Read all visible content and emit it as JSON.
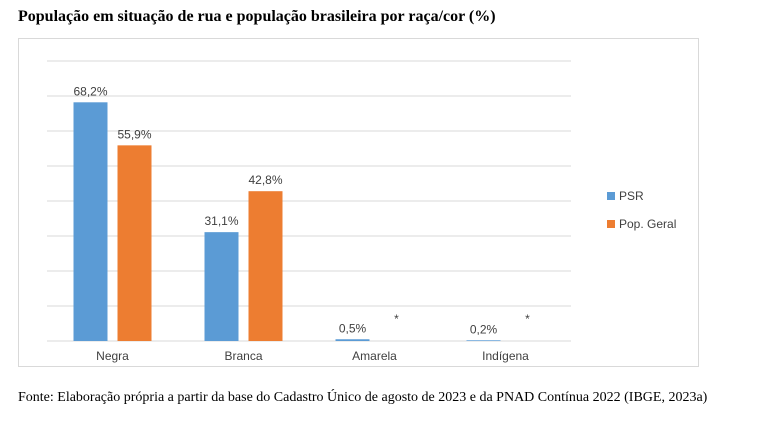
{
  "title": "População em situação de rua e população brasileira por raça/cor (%)",
  "source": "Fonte: Elaboração própria a partir da base do Cadastro Único de agosto de 2023 e da PNAD Contínua 2022 (IBGE, 2023a)",
  "colors": {
    "psr": "#5b9bd5",
    "pop_geral": "#ed7d31",
    "grid": "#d9d9d9",
    "text": "#404040"
  },
  "legend": [
    {
      "label": "PSR",
      "color": "#5b9bd5"
    },
    {
      "label": "Pop. Geral",
      "color": "#ed7d31"
    }
  ],
  "chart_data": {
    "type": "bar",
    "title": "População em situação de rua e população brasileira por raça/cor (%)",
    "categories": [
      "Negra",
      "Branca",
      "Amarela",
      "Indígena"
    ],
    "series": [
      {
        "name": "PSR",
        "values": [
          68.2,
          31.1,
          0.5,
          0.2
        ],
        "labels": [
          "68,2%",
          "31,1%",
          "0,5%",
          "0,2%"
        ]
      },
      {
        "name": "Pop. Geral",
        "values": [
          55.9,
          42.8,
          null,
          null
        ],
        "labels": [
          "55,9%",
          "42,8%",
          "*",
          "*"
        ]
      }
    ],
    "ylim": [
      0,
      80
    ],
    "grid": true,
    "legend_position": "right"
  }
}
